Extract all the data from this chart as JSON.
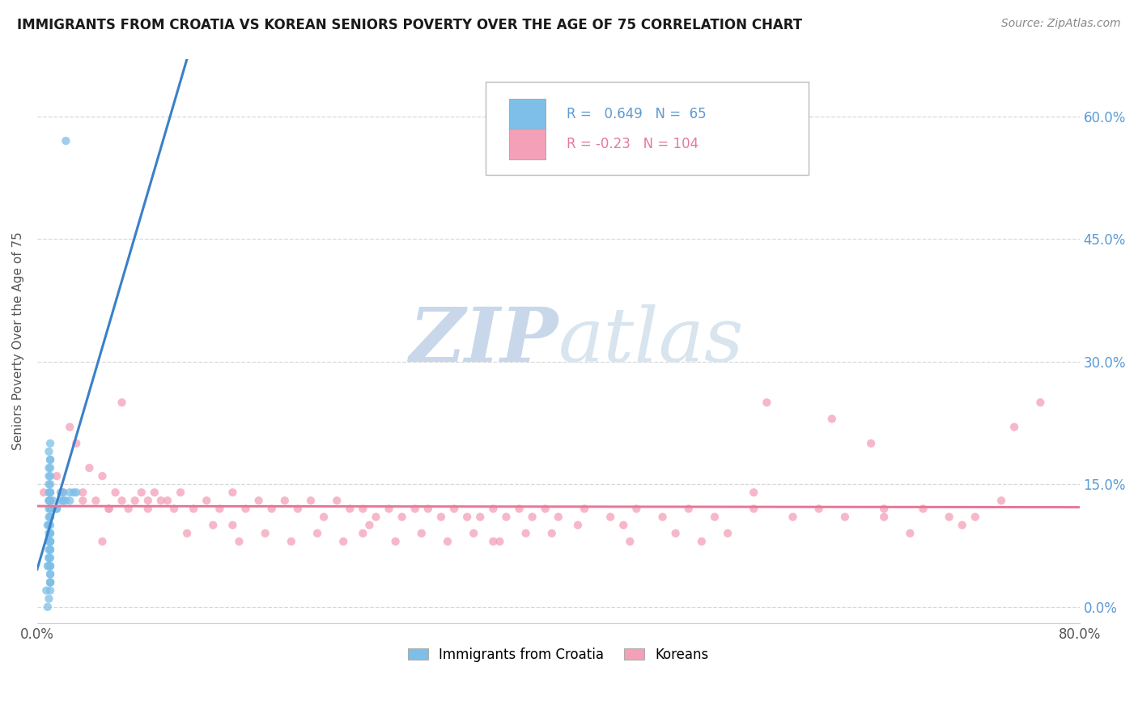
{
  "title": "IMMIGRANTS FROM CROATIA VS KOREAN SENIORS POVERTY OVER THE AGE OF 75 CORRELATION CHART",
  "source": "Source: ZipAtlas.com",
  "ylabel": "Seniors Poverty Over the Age of 75",
  "xlim": [
    0.0,
    0.8
  ],
  "ylim": [
    -0.02,
    0.67
  ],
  "yticks": [
    0.0,
    0.15,
    0.3,
    0.45,
    0.6
  ],
  "ytick_labels": [
    "0.0%",
    "15.0%",
    "30.0%",
    "45.0%",
    "60.0%"
  ],
  "croatia_R": 0.649,
  "croatia_N": 65,
  "korean_R": -0.23,
  "korean_N": 104,
  "croatia_color": "#7dbfe8",
  "korean_color": "#f4a0b8",
  "trendline_croatia_color": "#3a80c8",
  "trendline_korean_color": "#e8789a",
  "legend_croatia": "Immigrants from Croatia",
  "legend_korean": "Koreans",
  "watermark_zip": "ZIP",
  "watermark_atlas": "atlas",
  "background_color": "#ffffff",
  "grid_color": "#d8d8d8",
  "yaxis_color": "#5b9bd5",
  "title_color": "#1a1a1a",
  "source_color": "#888888",
  "ylabel_color": "#555555",
  "croatia_scatter_x": [
    0.008,
    0.009,
    0.007,
    0.01,
    0.01,
    0.01,
    0.01,
    0.01,
    0.008,
    0.009,
    0.01,
    0.01,
    0.009,
    0.01,
    0.009,
    0.01,
    0.009,
    0.01,
    0.01,
    0.01,
    0.009,
    0.008,
    0.009,
    0.01,
    0.009,
    0.01,
    0.01,
    0.009,
    0.009,
    0.01,
    0.009,
    0.01,
    0.01,
    0.009,
    0.01,
    0.009,
    0.01,
    0.009,
    0.01,
    0.01,
    0.01,
    0.009,
    0.01,
    0.01,
    0.009,
    0.01,
    0.01,
    0.009,
    0.01,
    0.01,
    0.01,
    0.022,
    0.02,
    0.018,
    0.015,
    0.012,
    0.03,
    0.025,
    0.015,
    0.02,
    0.018,
    0.022,
    0.025,
    0.02,
    0.028
  ],
  "croatia_scatter_y": [
    0.0,
    0.01,
    0.02,
    0.02,
    0.03,
    0.03,
    0.04,
    0.04,
    0.05,
    0.05,
    0.05,
    0.06,
    0.06,
    0.07,
    0.07,
    0.08,
    0.08,
    0.08,
    0.09,
    0.09,
    0.1,
    0.1,
    0.11,
    0.11,
    0.12,
    0.12,
    0.12,
    0.13,
    0.13,
    0.13,
    0.14,
    0.14,
    0.14,
    0.15,
    0.15,
    0.16,
    0.16,
    0.17,
    0.17,
    0.18,
    0.18,
    0.19,
    0.2,
    0.05,
    0.06,
    0.07,
    0.08,
    0.09,
    0.1,
    0.11,
    0.03,
    0.57,
    0.14,
    0.13,
    0.12,
    0.13,
    0.14,
    0.13,
    0.12,
    0.13,
    0.14,
    0.13,
    0.14,
    0.13,
    0.14
  ],
  "korean_scatter_x": [
    0.005,
    0.01,
    0.015,
    0.02,
    0.025,
    0.03,
    0.035,
    0.04,
    0.045,
    0.05,
    0.055,
    0.06,
    0.065,
    0.07,
    0.075,
    0.08,
    0.085,
    0.09,
    0.095,
    0.1,
    0.105,
    0.11,
    0.12,
    0.13,
    0.14,
    0.15,
    0.16,
    0.17,
    0.18,
    0.19,
    0.2,
    0.21,
    0.22,
    0.23,
    0.24,
    0.25,
    0.26,
    0.27,
    0.28,
    0.29,
    0.3,
    0.31,
    0.32,
    0.33,
    0.34,
    0.35,
    0.36,
    0.37,
    0.38,
    0.39,
    0.4,
    0.42,
    0.44,
    0.46,
    0.48,
    0.5,
    0.52,
    0.55,
    0.58,
    0.6,
    0.62,
    0.65,
    0.68,
    0.7,
    0.72,
    0.75,
    0.77,
    0.035,
    0.055,
    0.065,
    0.085,
    0.115,
    0.135,
    0.155,
    0.175,
    0.195,
    0.215,
    0.235,
    0.255,
    0.275,
    0.295,
    0.315,
    0.335,
    0.355,
    0.375,
    0.395,
    0.415,
    0.455,
    0.49,
    0.51,
    0.53,
    0.56,
    0.61,
    0.64,
    0.67,
    0.71,
    0.74,
    0.05,
    0.15,
    0.25,
    0.35,
    0.45,
    0.55,
    0.65
  ],
  "korean_scatter_y": [
    0.14,
    0.13,
    0.16,
    0.14,
    0.22,
    0.2,
    0.14,
    0.17,
    0.13,
    0.16,
    0.12,
    0.14,
    0.13,
    0.12,
    0.13,
    0.14,
    0.13,
    0.14,
    0.13,
    0.13,
    0.12,
    0.14,
    0.12,
    0.13,
    0.12,
    0.14,
    0.12,
    0.13,
    0.12,
    0.13,
    0.12,
    0.13,
    0.11,
    0.13,
    0.12,
    0.12,
    0.11,
    0.12,
    0.11,
    0.12,
    0.12,
    0.11,
    0.12,
    0.11,
    0.11,
    0.12,
    0.11,
    0.12,
    0.11,
    0.12,
    0.11,
    0.12,
    0.11,
    0.12,
    0.11,
    0.12,
    0.11,
    0.12,
    0.11,
    0.12,
    0.11,
    0.11,
    0.12,
    0.11,
    0.11,
    0.22,
    0.25,
    0.13,
    0.12,
    0.25,
    0.12,
    0.09,
    0.1,
    0.08,
    0.09,
    0.08,
    0.09,
    0.08,
    0.1,
    0.08,
    0.09,
    0.08,
    0.09,
    0.08,
    0.09,
    0.09,
    0.1,
    0.08,
    0.09,
    0.08,
    0.09,
    0.25,
    0.23,
    0.2,
    0.09,
    0.1,
    0.13,
    0.08,
    0.1,
    0.09,
    0.08,
    0.1,
    0.14,
    0.12
  ]
}
